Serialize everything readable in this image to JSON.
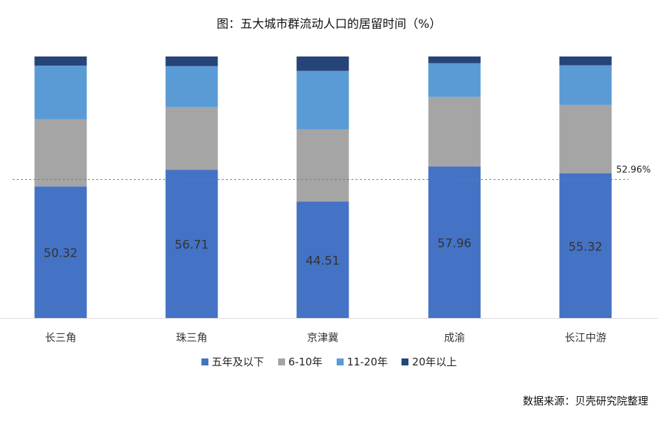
{
  "page": {
    "title": "图：五大城市群流动人口的居留时间（%）",
    "source": "数据来源：贝壳研究院整理"
  },
  "chart_data": {
    "type": "bar",
    "stacked": true,
    "categories": [
      "长三角",
      "珠三角",
      "京津冀",
      "成渝",
      "长江中游"
    ],
    "ylim": [
      0,
      100
    ],
    "series": [
      {
        "name": "五年及以下",
        "color": "#4472c4",
        "values": [
          50.32,
          56.71,
          44.51,
          57.96,
          55.32
        ]
      },
      {
        "name": "6-10年",
        "color": "#a5a5a5",
        "values": [
          25.7,
          23.9,
          27.6,
          26.6,
          26.1
        ]
      },
      {
        "name": "11-20年",
        "color": "#5b9bd5",
        "values": [
          20.5,
          15.7,
          22.4,
          12.9,
          15.2
        ]
      },
      {
        "name": "20年以上",
        "color": "#264478",
        "values": [
          3.48,
          3.69,
          5.49,
          2.54,
          3.38
        ]
      }
    ],
    "data_labels_series": "五年及以下",
    "reference_line": {
      "value": 52.96,
      "label": "52.96%",
      "style": "dashed"
    },
    "legend_position": "bottom",
    "grid": false
  }
}
